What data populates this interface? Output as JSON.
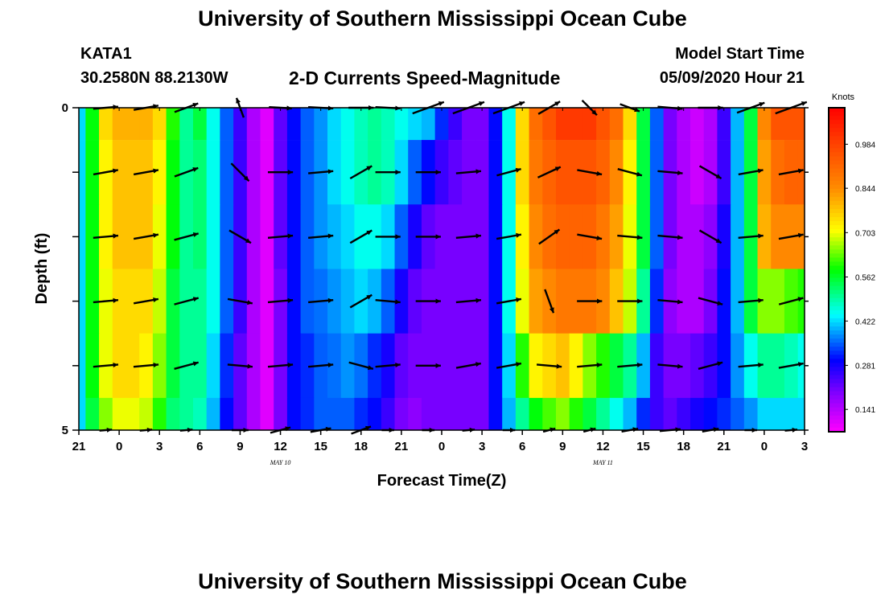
{
  "header": {
    "title": "University of Southern Mississippi Ocean Cube",
    "station": "KATA1",
    "coordinates": "30.2580N 88.2130W",
    "plot_title": "2-D Currents Speed-Magnitude",
    "model_start_label": "Model Start Time",
    "model_start_value": "05/09/2020 Hour 21"
  },
  "footer": {
    "title": "University of Southern Mississippi Ocean Cube"
  },
  "chart_data": {
    "type": "heatmap",
    "title": "2-D Currents Speed-Magnitude",
    "xlabel": "Forecast Time(Z)",
    "ylabel": "Depth (ft)",
    "x_hours_since_start": [
      0,
      3,
      6,
      9,
      12,
      15,
      18,
      21,
      24,
      27,
      30,
      33,
      36,
      39,
      42,
      45,
      48,
      51,
      54
    ],
    "x_tick_labels": [
      "21",
      "0",
      "3",
      "6",
      "9",
      "12",
      "15",
      "18",
      "21",
      "0",
      "3",
      "6",
      "9",
      "12",
      "15",
      "18",
      "21",
      "0",
      "3"
    ],
    "date_labels": [
      {
        "text": "MAY 10",
        "hours_since_start": 15
      },
      {
        "text": "MAY 11",
        "hours_since_start": 39
      }
    ],
    "y_ticks": [
      0,
      5
    ],
    "ylim": [
      0,
      5
    ],
    "depth_levels": [
      0,
      1,
      2,
      3,
      4,
      5
    ],
    "colorbar": {
      "unit": "Knots",
      "min": 0.07,
      "max": 1.1,
      "tick_values": [
        0.141,
        0.281,
        0.422,
        0.562,
        0.703,
        0.844,
        0.984
      ],
      "tick_labels": [
        "0.141",
        "0.281",
        "0.422",
        "0.562",
        "0.703",
        "0.844",
        "0.984"
      ]
    },
    "speed_hours_since_start": [
      0,
      1,
      2,
      3,
      4,
      5,
      6,
      7,
      8,
      9,
      10,
      11,
      12,
      13,
      14,
      15,
      16,
      17,
      18,
      19,
      20,
      21,
      22,
      23,
      24,
      25,
      26,
      27,
      28,
      29,
      30,
      31,
      32,
      33,
      34,
      35,
      36,
      37,
      38,
      39,
      40,
      41,
      42,
      43,
      44,
      45,
      46,
      47,
      48,
      49,
      50,
      51,
      52,
      53,
      54
    ],
    "speed_knots": [
      [
        0.42,
        0.58,
        0.75,
        0.8,
        0.8,
        0.8,
        0.75,
        0.6,
        0.5,
        0.55,
        0.45,
        0.35,
        0.25,
        0.15,
        0.1,
        0.22,
        0.3,
        0.35,
        0.38,
        0.42,
        0.45,
        0.48,
        0.5,
        0.48,
        0.45,
        0.42,
        0.4,
        0.32,
        0.25,
        0.2,
        0.2,
        0.3,
        0.45,
        0.75,
        0.9,
        0.95,
        1.0,
        1.0,
        1.0,
        0.95,
        0.9,
        0.75,
        0.55,
        0.35,
        0.2,
        0.15,
        0.12,
        0.15,
        0.25,
        0.4,
        0.55,
        0.85,
        0.95,
        0.95,
        0.95
      ],
      [
        0.42,
        0.58,
        0.72,
        0.78,
        0.78,
        0.78,
        0.72,
        0.58,
        0.5,
        0.52,
        0.45,
        0.35,
        0.25,
        0.15,
        0.1,
        0.22,
        0.3,
        0.35,
        0.38,
        0.42,
        0.45,
        0.48,
        0.5,
        0.48,
        0.42,
        0.35,
        0.3,
        0.25,
        0.22,
        0.2,
        0.2,
        0.3,
        0.45,
        0.75,
        0.88,
        0.92,
        0.95,
        0.95,
        0.95,
        0.92,
        0.85,
        0.72,
        0.55,
        0.35,
        0.2,
        0.15,
        0.12,
        0.15,
        0.25,
        0.4,
        0.55,
        0.82,
        0.9,
        0.92,
        0.92
      ],
      [
        0.42,
        0.58,
        0.72,
        0.78,
        0.78,
        0.78,
        0.7,
        0.58,
        0.5,
        0.52,
        0.45,
        0.35,
        0.25,
        0.15,
        0.1,
        0.22,
        0.3,
        0.35,
        0.38,
        0.4,
        0.42,
        0.45,
        0.45,
        0.42,
        0.35,
        0.28,
        0.22,
        0.2,
        0.2,
        0.2,
        0.2,
        0.3,
        0.45,
        0.72,
        0.85,
        0.9,
        0.92,
        0.92,
        0.92,
        0.88,
        0.82,
        0.7,
        0.55,
        0.35,
        0.2,
        0.15,
        0.15,
        0.18,
        0.28,
        0.4,
        0.55,
        0.8,
        0.85,
        0.85,
        0.85
      ],
      [
        0.42,
        0.58,
        0.7,
        0.75,
        0.75,
        0.75,
        0.68,
        0.55,
        0.5,
        0.5,
        0.45,
        0.35,
        0.25,
        0.15,
        0.1,
        0.2,
        0.3,
        0.35,
        0.36,
        0.38,
        0.4,
        0.42,
        0.4,
        0.35,
        0.28,
        0.22,
        0.2,
        0.2,
        0.2,
        0.2,
        0.2,
        0.3,
        0.45,
        0.7,
        0.82,
        0.85,
        0.88,
        0.88,
        0.88,
        0.85,
        0.78,
        0.68,
        0.5,
        0.32,
        0.18,
        0.15,
        0.15,
        0.2,
        0.3,
        0.4,
        0.55,
        0.65,
        0.65,
        0.62,
        0.6
      ],
      [
        0.42,
        0.58,
        0.7,
        0.75,
        0.75,
        0.72,
        0.65,
        0.55,
        0.5,
        0.5,
        0.42,
        0.32,
        0.22,
        0.15,
        0.1,
        0.2,
        0.3,
        0.32,
        0.35,
        0.36,
        0.38,
        0.36,
        0.32,
        0.28,
        0.22,
        0.2,
        0.2,
        0.2,
        0.2,
        0.2,
        0.2,
        0.3,
        0.42,
        0.6,
        0.72,
        0.75,
        0.78,
        0.72,
        0.65,
        0.6,
        0.55,
        0.5,
        0.4,
        0.25,
        0.2,
        0.2,
        0.22,
        0.25,
        0.3,
        0.38,
        0.45,
        0.5,
        0.5,
        0.48,
        0.45
      ],
      [
        0.42,
        0.55,
        0.65,
        0.7,
        0.7,
        0.68,
        0.6,
        0.52,
        0.5,
        0.48,
        0.4,
        0.3,
        0.22,
        0.15,
        0.1,
        0.2,
        0.3,
        0.32,
        0.35,
        0.35,
        0.35,
        0.32,
        0.3,
        0.25,
        0.2,
        0.18,
        0.2,
        0.2,
        0.2,
        0.2,
        0.2,
        0.3,
        0.4,
        0.5,
        0.58,
        0.62,
        0.65,
        0.6,
        0.55,
        0.5,
        0.45,
        0.4,
        0.32,
        0.25,
        0.22,
        0.25,
        0.28,
        0.3,
        0.32,
        0.35,
        0.38,
        0.42,
        0.42,
        0.42,
        0.42
      ]
    ],
    "vector_hours_since_start": [
      2,
      5,
      8,
      12,
      15,
      18,
      21,
      23,
      26,
      29,
      32,
      35,
      38,
      41,
      44,
      47,
      50,
      53
    ],
    "vectors": [
      {
        "depth": 0,
        "dir_deg": [
          85,
          80,
          70,
          340,
          93,
          93,
          90,
          93,
          70,
          70,
          70,
          60,
          135,
          110,
          95,
          90,
          70,
          70
        ],
        "rel_length": [
          0.6,
          0.6,
          0.6,
          0.5,
          0.55,
          0.6,
          0.6,
          0.6,
          0.8,
          0.8,
          0.8,
          0.6,
          0.5,
          0.5,
          0.6,
          0.6,
          0.7,
          0.8
        ]
      },
      {
        "depth": 1,
        "dir_deg": [
          80,
          80,
          70,
          135,
          90,
          85,
          60,
          90,
          90,
          85,
          75,
          65,
          100,
          105,
          95,
          120,
          80,
          80
        ],
        "rel_length": [
          0.6,
          0.6,
          0.6,
          0.6,
          0.6,
          0.6,
          0.6,
          0.6,
          0.6,
          0.6,
          0.6,
          0.6,
          0.6,
          0.6,
          0.6,
          0.6,
          0.6,
          0.6
        ]
      },
      {
        "depth": 2,
        "dir_deg": [
          85,
          80,
          75,
          120,
          85,
          85,
          60,
          90,
          90,
          85,
          80,
          55,
          100,
          95,
          95,
          120,
          85,
          80
        ],
        "rel_length": [
          0.6,
          0.6,
          0.6,
          0.6,
          0.6,
          0.6,
          0.6,
          0.6,
          0.6,
          0.6,
          0.6,
          0.6,
          0.6,
          0.6,
          0.6,
          0.6,
          0.6,
          0.6
        ]
      },
      {
        "depth": 3,
        "dir_deg": [
          85,
          80,
          75,
          100,
          85,
          85,
          60,
          95,
          90,
          85,
          80,
          160,
          90,
          90,
          95,
          105,
          85,
          75
        ],
        "rel_length": [
          0.6,
          0.6,
          0.6,
          0.6,
          0.6,
          0.6,
          0.6,
          0.6,
          0.6,
          0.6,
          0.6,
          0.6,
          0.6,
          0.6,
          0.6,
          0.6,
          0.6,
          0.6
        ]
      },
      {
        "depth": 4,
        "dir_deg": [
          85,
          85,
          75,
          95,
          85,
          85,
          105,
          85,
          90,
          80,
          80,
          95,
          85,
          85,
          95,
          75,
          85,
          80
        ],
        "rel_length": [
          0.6,
          0.6,
          0.6,
          0.6,
          0.6,
          0.6,
          0.6,
          0.6,
          0.6,
          0.6,
          0.6,
          0.6,
          0.6,
          0.6,
          0.6,
          0.6,
          0.6,
          0.6
        ]
      },
      {
        "depth": 5,
        "dir_deg": [
          85,
          85,
          85,
          90,
          75,
          80,
          70,
          90,
          90,
          85,
          90,
          75,
          75,
          80,
          85,
          80,
          90,
          85
        ],
        "rel_length": [
          0.3,
          0.3,
          0.3,
          0.4,
          0.5,
          0.5,
          0.5,
          0.3,
          0.3,
          0.3,
          0.3,
          0.3,
          0.3,
          0.4,
          0.5,
          0.4,
          0.3,
          0.3
        ]
      }
    ]
  }
}
